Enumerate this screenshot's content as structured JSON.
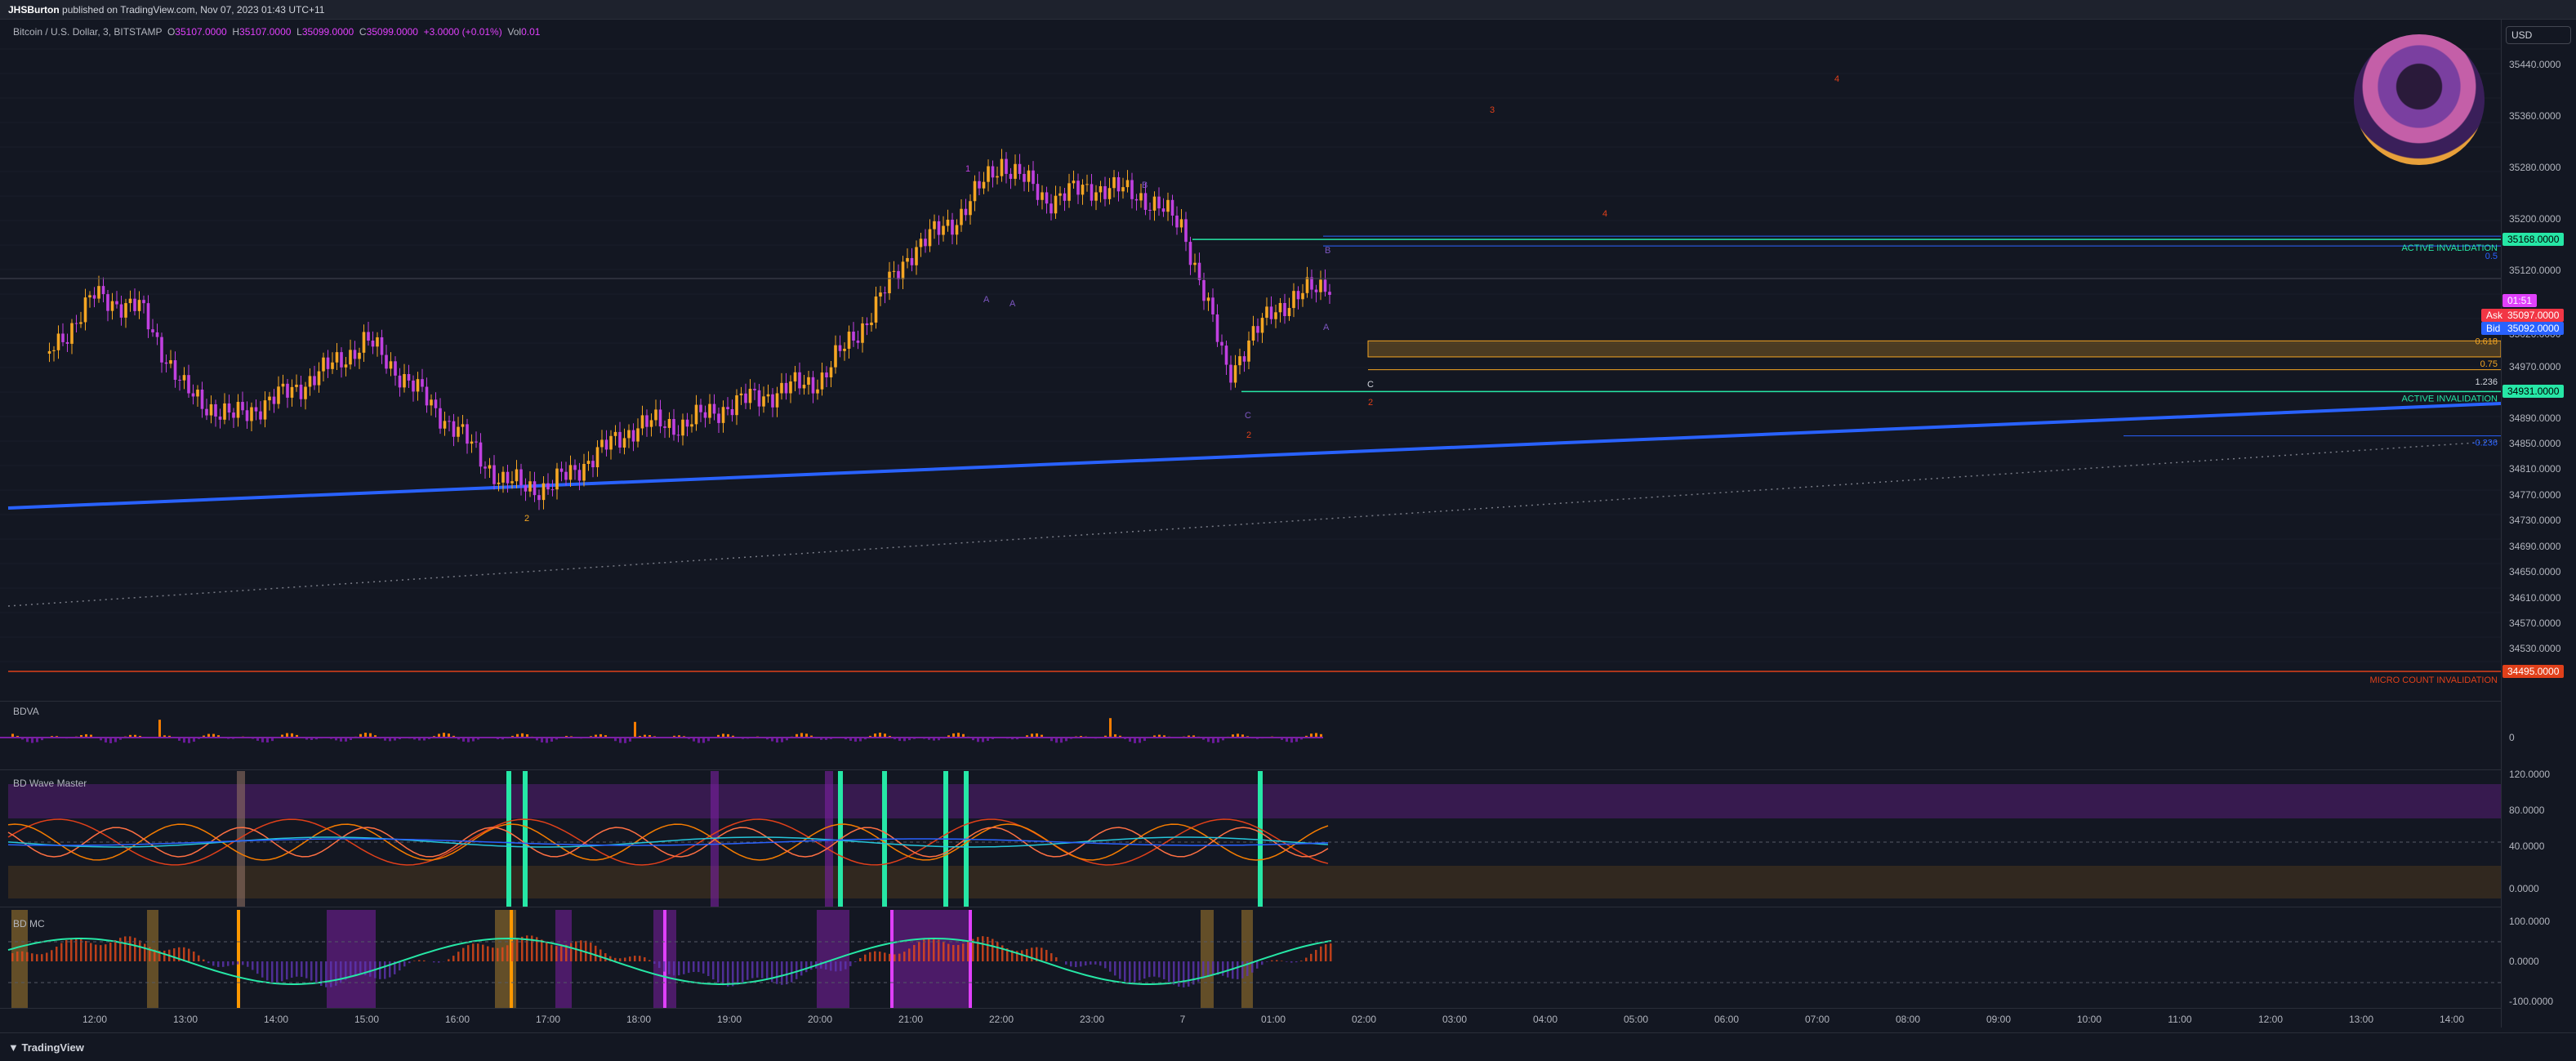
{
  "header": {
    "publisher": "JHSBurton",
    "published_text": "published on TradingView.com, Nov 07, 2023 01:43 UTC+11"
  },
  "legend": {
    "symbol": "Bitcoin / U.S. Dollar, 3, BITSTAMP",
    "open_label": "O",
    "open": "35107.0000",
    "high_label": "H",
    "high": "35107.0000",
    "low_label": "L",
    "low": "35099.0000",
    "close_label": "C",
    "close": "35099.0000",
    "change": "+3.0000 (+0.01%)",
    "vol_label": "Vol",
    "vol": "0.01"
  },
  "currency_button": "USD",
  "colors": {
    "background": "#131722",
    "candle_up": "#f5a623",
    "candle_down": "#c040e0",
    "trendline": "#2962ff",
    "invalidation_line": "#e0401a",
    "accent_green": "#26e7a6"
  },
  "price_axis": {
    "ticks": [
      "35440.0000",
      "35360.0000",
      "35280.0000",
      "35200.0000",
      "35120.0000",
      "35020.0000",
      "34970.0000",
      "34890.0000",
      "34850.0000",
      "34810.0000",
      "34770.0000",
      "34730.0000",
      "34690.0000",
      "34650.0000",
      "34610.0000",
      "34570.0000",
      "34530.0000"
    ],
    "tags": [
      {
        "label": "35168.0000",
        "bg": "#26e7a6",
        "fg": "#000000"
      },
      {
        "label": "01:51",
        "bg": "#e040fb",
        "fg": "#ffffff"
      },
      {
        "label": "Ask",
        "bg": "#f23645",
        "fg": "#ffffff"
      },
      {
        "label": "35097.0000",
        "bg": "#f23645",
        "fg": "#ffffff"
      },
      {
        "label": "Bid",
        "bg": "#2962ff",
        "fg": "#ffffff"
      },
      {
        "label": "35092.0000",
        "bg": "#2962ff",
        "fg": "#ffffff"
      },
      {
        "label": "34931.0000",
        "bg": "#26e7a6",
        "fg": "#000000"
      },
      {
        "label": "34495.0000",
        "bg": "#e0401a",
        "fg": "#ffffff"
      }
    ]
  },
  "time_axis": [
    "12:00",
    "13:00",
    "14:00",
    "15:00",
    "16:00",
    "17:00",
    "18:00",
    "19:00",
    "20:00",
    "21:00",
    "22:00",
    "23:00",
    "7",
    "01:00",
    "02:00",
    "03:00",
    "04:00",
    "05:00",
    "06:00",
    "07:00",
    "08:00",
    "09:00",
    "10:00",
    "11:00",
    "12:00",
    "13:00",
    "14:00"
  ],
  "annotations": {
    "active_invalidation_top": "ACTIVE INVALIDATION",
    "active_invalidation_bottom": "ACTIVE INVALIDATION",
    "micro_count": "MICRO COUNT INVALIDATION",
    "fib_0618": "0.618",
    "fib_075": "0.75",
    "fib_1236": "1.236",
    "fib_n0236": "-0.236",
    "fib_05": "0.5",
    "wave_labels": [
      "1",
      "B",
      "A",
      "C",
      "2",
      "2",
      "A",
      "C",
      "3",
      "4",
      "4",
      "2",
      "A",
      "B"
    ]
  },
  "panes": {
    "bdva": {
      "label": "BDVA",
      "ticks": [
        "0"
      ]
    },
    "wave_master": {
      "label": "BD Wave Master",
      "ticks": [
        "120.0000",
        "80.0000",
        "40.0000",
        "0.0000"
      ]
    },
    "bdmc": {
      "label": "BD MC",
      "ticks": [
        "100.0000",
        "0.0000",
        "-100.0000"
      ]
    }
  },
  "footer": {
    "brand": "TradingView"
  },
  "chart_data": {
    "type": "candlestick",
    "symbol": "BTCUSD",
    "interval": "3",
    "x": [
      "11:30",
      "12:00",
      "12:30",
      "13:00",
      "13:30",
      "14:00",
      "14:30",
      "15:00",
      "15:30",
      "16:00",
      "16:30",
      "17:00",
      "17:30",
      "18:00",
      "18:30",
      "19:00",
      "19:30",
      "20:00",
      "20:30",
      "21:00",
      "21:30",
      "22:00",
      "22:30",
      "23:00",
      "23:30",
      "00:00",
      "00:30",
      "01:00",
      "01:40"
    ],
    "close": [
      34990,
      35080,
      35060,
      34930,
      34890,
      34920,
      34960,
      35010,
      34940,
      34870,
      34790,
      34780,
      34830,
      34880,
      34880,
      34910,
      34930,
      34950,
      35040,
      35150,
      35200,
      35290,
      35230,
      35250,
      35240,
      35190,
      34960,
      35060,
      35105
    ],
    "ylim": [
      34495,
      35480
    ],
    "levels": {
      "active_invalidation_upper": 35168,
      "active_invalidation_lower": 34931,
      "micro_count_invalidation": 34495,
      "ask": 35097,
      "bid": 35092
    }
  }
}
